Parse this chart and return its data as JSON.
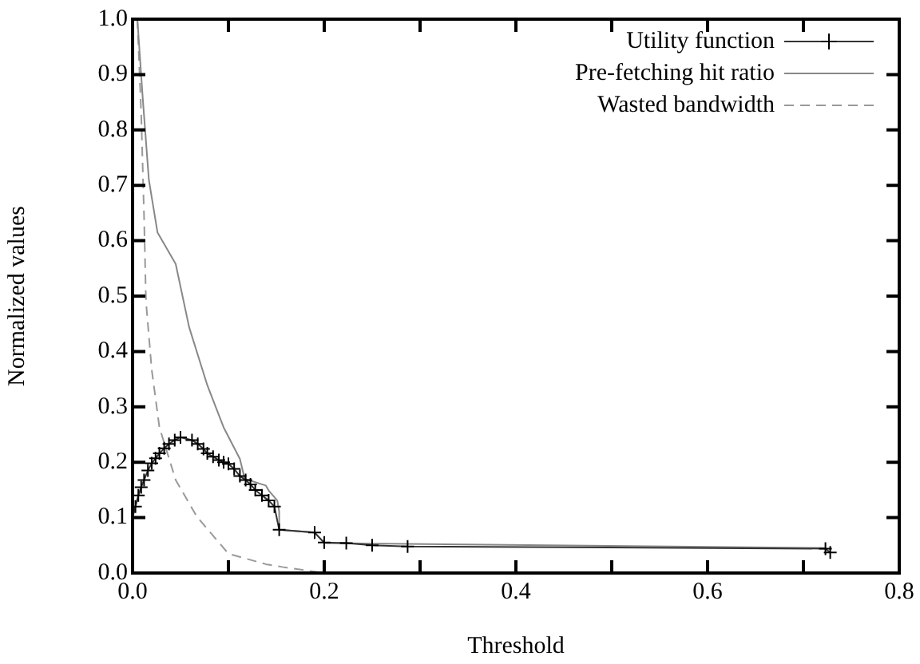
{
  "chart_data": {
    "type": "line",
    "xlabel": "Threshold",
    "ylabel": "Normalized values",
    "legend": "top right",
    "grid": false,
    "xlim": [
      0,
      0.8
    ],
    "xticks": [
      {
        "value": 0,
        "label": "0.0"
      },
      {
        "value": 0.1,
        "label": null
      },
      {
        "value": 0.2,
        "label": "0.2"
      },
      {
        "value": 0.3,
        "label": null
      },
      {
        "value": 0.4,
        "label": "0.4"
      },
      {
        "value": 0.5,
        "label": null
      },
      {
        "value": 0.6,
        "label": "0.6"
      },
      {
        "value": 0.7,
        "label": null
      },
      {
        "value": 0.8,
        "label": "0.8"
      }
    ],
    "ylim": [
      0,
      1
    ],
    "yticks": [
      {
        "value": 0,
        "label": "0.0"
      },
      {
        "value": 0.1,
        "label": "0.1"
      },
      {
        "value": 0.2,
        "label": "0.2"
      },
      {
        "value": 0.3,
        "label": "0.3"
      },
      {
        "value": 0.4,
        "label": "0.4"
      },
      {
        "value": 0.5,
        "label": "0.5"
      },
      {
        "value": 0.6,
        "label": "0.6"
      },
      {
        "value": 0.7,
        "label": "0.7"
      },
      {
        "value": 0.8,
        "label": "0.8"
      },
      {
        "value": 0.9,
        "label": "0.9"
      },
      {
        "value": 1,
        "label": "1.0"
      }
    ],
    "series": [
      {
        "name": "Utility function",
        "color": "#333333",
        "marker": "cross",
        "line_style": "solid",
        "x": [
          0.0,
          0.003,
          0.006,
          0.009,
          0.012,
          0.016,
          0.02,
          0.024,
          0.028,
          0.033,
          0.038,
          0.044,
          0.05,
          0.062,
          0.068,
          0.074,
          0.078,
          0.084,
          0.09,
          0.095,
          0.1,
          0.106,
          0.112,
          0.118,
          0.123,
          0.128,
          0.135,
          0.142,
          0.148,
          0.153,
          0.19,
          0.2,
          0.223,
          0.25,
          0.287,
          0.723,
          0.728
        ],
        "values": [
          0.1,
          0.12,
          0.14,
          0.155,
          0.168,
          0.185,
          0.198,
          0.207,
          0.216,
          0.225,
          0.233,
          0.24,
          0.245,
          0.24,
          0.233,
          0.224,
          0.216,
          0.21,
          0.204,
          0.2,
          0.197,
          0.188,
          0.175,
          0.168,
          0.16,
          0.15,
          0.14,
          0.131,
          0.12,
          0.078,
          0.073,
          0.055,
          0.054,
          0.05,
          0.048,
          0.044,
          0.037
        ]
      },
      {
        "name": "Pre-fetching hit ratio",
        "color": "#888888",
        "marker": "none",
        "line_style": "solid",
        "x": [
          0.005,
          0.0105,
          0.017,
          0.026,
          0.045,
          0.059,
          0.078,
          0.095,
          0.112,
          0.117,
          0.139,
          0.142,
          0.151,
          0.153,
          0.153,
          0.19,
          0.2,
          0.723
        ],
        "values": [
          1.0,
          0.86,
          0.71,
          0.615,
          0.558,
          0.444,
          0.339,
          0.263,
          0.206,
          0.17,
          0.158,
          0.149,
          0.131,
          0.111,
          0.078,
          0.073,
          0.054,
          0.045
        ]
      },
      {
        "name": "Wasted bandwidth",
        "color": "#999999",
        "marker": "none",
        "line_style": "dashed",
        "x": [
          0.005,
          0.009,
          0.012,
          0.014,
          0.02,
          0.028,
          0.045,
          0.067,
          0.1,
          0.139,
          0.156,
          0.2
        ],
        "values": [
          1.0,
          0.83,
          0.643,
          0.49,
          0.367,
          0.263,
          0.168,
          0.102,
          0.035,
          0.016,
          0.011,
          0.0
        ]
      }
    ]
  }
}
